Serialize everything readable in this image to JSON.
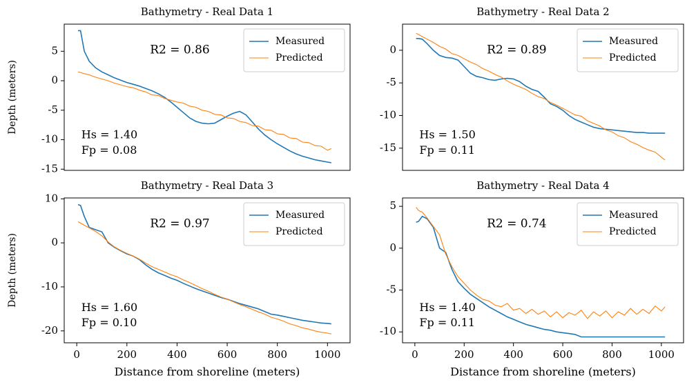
{
  "chart_data": [
    {
      "type": "line",
      "title": "Bathymetry - Real Data 1",
      "ylabel": "Depth (meters)",
      "x": [
        5,
        15,
        30,
        50,
        75,
        100,
        125,
        150,
        175,
        200,
        225,
        250,
        275,
        300,
        325,
        350,
        375,
        400,
        425,
        450,
        475,
        500,
        525,
        550,
        575,
        600,
        625,
        650,
        675,
        700,
        725,
        750,
        775,
        800,
        825,
        850,
        875,
        900,
        925,
        950,
        975,
        1000,
        1015
      ],
      "series": [
        {
          "name": "Measured",
          "color": "#1f77b4",
          "values": [
            8.5,
            8.5,
            5,
            3.3,
            2.2,
            1.5,
            1.0,
            0.5,
            0.1,
            -0.3,
            -0.6,
            -0.9,
            -1.3,
            -1.7,
            -2.2,
            -2.8,
            -3.6,
            -4.5,
            -5.4,
            -6.3,
            -6.9,
            -7.2,
            -7.3,
            -7.2,
            -6.6,
            -6.0,
            -5.5,
            -5.2,
            -5.8,
            -7.0,
            -8.2,
            -9.2,
            -10.0,
            -10.7,
            -11.3,
            -11.9,
            -12.4,
            -12.8,
            -13.1,
            -13.4,
            -13.6,
            -13.8,
            -13.9
          ]
        },
        {
          "name": "Predicted",
          "color": "#ff7f0e",
          "values": [
            1.5,
            1.4,
            1.2,
            1.0,
            0.6,
            0.3,
            0.0,
            -0.4,
            -0.7,
            -1.0,
            -1.2,
            -1.6,
            -1.9,
            -2.4,
            -2.5,
            -3.0,
            -3.3,
            -3.6,
            -3.8,
            -4.3,
            -4.5,
            -5.0,
            -5.2,
            -5.7,
            -5.8,
            -6.3,
            -6.4,
            -6.9,
            -7.1,
            -7.6,
            -7.7,
            -8.3,
            -8.4,
            -9.0,
            -9.1,
            -9.7,
            -9.8,
            -10.4,
            -10.5,
            -11.0,
            -11.1,
            -11.8,
            -11.5
          ]
        }
      ],
      "xlim": [
        -50,
        1090
      ],
      "ylim": [
        -15.2,
        9.6
      ],
      "yticks": [
        -15,
        -10,
        -5,
        0,
        5
      ],
      "legend": "upper right",
      "annotations": [
        "R2 = 0.86",
        "Hs = 1.40",
        "Fp = 0.08"
      ]
    },
    {
      "type": "line",
      "title": "Bathymetry - Real Data 2",
      "x": [
        5,
        15,
        30,
        50,
        75,
        100,
        125,
        150,
        175,
        200,
        225,
        250,
        275,
        300,
        325,
        350,
        375,
        400,
        425,
        450,
        475,
        500,
        525,
        550,
        575,
        600,
        625,
        650,
        675,
        700,
        725,
        750,
        775,
        800,
        825,
        850,
        875,
        900,
        925,
        950,
        975,
        1000,
        1015
      ],
      "series": [
        {
          "name": "Measured",
          "color": "#1f77b4",
          "values": [
            1.8,
            1.8,
            1.7,
            1.0,
            0.0,
            -0.8,
            -1.1,
            -1.2,
            -1.5,
            -2.5,
            -3.5,
            -4.0,
            -4.2,
            -4.5,
            -4.6,
            -4.4,
            -4.3,
            -4.4,
            -4.8,
            -5.5,
            -6.0,
            -6.3,
            -7.2,
            -8.2,
            -8.6,
            -9.2,
            -10.0,
            -10.6,
            -11.0,
            -11.4,
            -11.8,
            -12.0,
            -12.1,
            -12.2,
            -12.3,
            -12.4,
            -12.5,
            -12.6,
            -12.6,
            -12.7,
            -12.7,
            -12.7,
            -12.7
          ]
        },
        {
          "name": "Predicted",
          "color": "#ff7f0e",
          "values": [
            2.6,
            2.4,
            2.1,
            1.7,
            1.2,
            0.6,
            0.2,
            -0.5,
            -0.8,
            -1.3,
            -1.8,
            -2.2,
            -2.8,
            -3.2,
            -3.7,
            -4.1,
            -4.7,
            -5.2,
            -5.6,
            -6.0,
            -6.6,
            -7.1,
            -7.4,
            -8.0,
            -8.4,
            -8.9,
            -9.4,
            -9.9,
            -10.1,
            -10.8,
            -11.2,
            -11.6,
            -12.2,
            -12.5,
            -13.1,
            -13.4,
            -14.0,
            -14.4,
            -14.9,
            -15.3,
            -15.6,
            -16.4,
            -16.8
          ]
        }
      ],
      "xlim": [
        -50,
        1090
      ],
      "ylim": [
        -18.4,
        4
      ],
      "yticks": [
        -15,
        -10,
        -5,
        0
      ],
      "legend": "upper right",
      "annotations": [
        "R2 = 0.89",
        "Hs = 1.50",
        "Fp = 0.11"
      ]
    },
    {
      "type": "line",
      "title": "Bathymetry - Real Data 3",
      "ylabel": "Depth (meters)",
      "xlabel": "Distance from shoreline (meters)",
      "x": [
        5,
        15,
        30,
        50,
        75,
        100,
        125,
        150,
        175,
        200,
        225,
        250,
        275,
        300,
        325,
        350,
        375,
        400,
        425,
        450,
        475,
        500,
        525,
        550,
        575,
        600,
        625,
        650,
        675,
        700,
        725,
        750,
        775,
        800,
        825,
        850,
        875,
        900,
        925,
        950,
        975,
        1000,
        1015
      ],
      "series": [
        {
          "name": "Measured",
          "color": "#1f77b4",
          "values": [
            8.7,
            8.5,
            6,
            3.5,
            3,
            2.5,
            0,
            -1,
            -1.8,
            -2.5,
            -3,
            -3.8,
            -5,
            -6,
            -6.8,
            -7.4,
            -8,
            -8.5,
            -9.2,
            -9.8,
            -10.4,
            -10.9,
            -11.4,
            -11.9,
            -12.4,
            -12.8,
            -13.3,
            -13.8,
            -14.2,
            -14.6,
            -15,
            -15.6,
            -16.2,
            -16.4,
            -16.7,
            -17,
            -17.3,
            -17.6,
            -17.8,
            -18,
            -18.2,
            -18.3,
            -18.4
          ]
        },
        {
          "name": "Predicted",
          "color": "#ff7f0e",
          "values": [
            4.8,
            4.5,
            4,
            3.4,
            2.6,
            1.6,
            0.2,
            -0.9,
            -1.7,
            -2.4,
            -3.0,
            -3.7,
            -4.6,
            -5.4,
            -6.0,
            -6.6,
            -7.2,
            -7.7,
            -8.4,
            -9.0,
            -9.7,
            -10.4,
            -11.0,
            -11.7,
            -12.3,
            -12.8,
            -13.4,
            -14.0,
            -14.5,
            -15.1,
            -15.7,
            -16.2,
            -16.9,
            -17.3,
            -17.8,
            -18.4,
            -18.8,
            -19.3,
            -19.6,
            -20.0,
            -20.3,
            -20.5,
            -20.7
          ]
        }
      ],
      "xlim": [
        -50,
        1090
      ],
      "ylim": [
        -22.7,
        10.2
      ],
      "xticks": [
        0,
        200,
        400,
        600,
        800,
        1000
      ],
      "yticks": [
        -20,
        -10,
        0,
        10
      ],
      "legend": "upper right",
      "annotations": [
        "R2 = 0.97",
        "Hs = 1.60",
        "Fp = 0.10"
      ]
    },
    {
      "type": "line",
      "title": "Bathymetry - Real Data 4",
      "xlabel": "Distance from shoreline (meters)",
      "x": [
        5,
        15,
        30,
        50,
        75,
        100,
        125,
        150,
        175,
        200,
        225,
        250,
        275,
        300,
        325,
        350,
        375,
        400,
        425,
        450,
        475,
        500,
        525,
        550,
        575,
        600,
        625,
        650,
        675,
        700,
        725,
        750,
        775,
        800,
        825,
        850,
        875,
        900,
        925,
        950,
        975,
        1000,
        1015
      ],
      "series": [
        {
          "name": "Measured",
          "color": "#1f77b4",
          "values": [
            3.1,
            3.2,
            3.8,
            3.5,
            2.5,
            0.0,
            -0.5,
            -2.5,
            -4.0,
            -4.8,
            -5.5,
            -6.0,
            -6.5,
            -7.0,
            -7.4,
            -7.8,
            -8.2,
            -8.5,
            -8.8,
            -9.1,
            -9.3,
            -9.5,
            -9.7,
            -9.8,
            -10.0,
            -10.1,
            -10.2,
            -10.3,
            -10.6,
            -10.6,
            -10.6,
            -10.6,
            -10.6,
            -10.6,
            -10.6,
            -10.6,
            -10.6,
            -10.6,
            -10.6,
            -10.6,
            -10.6,
            -10.6,
            -10.6
          ]
        },
        {
          "name": "Predicted",
          "color": "#ff7f0e",
          "values": [
            4.9,
            4.5,
            4.3,
            3.6,
            2.6,
            1.6,
            -0.7,
            -2.2,
            -3.4,
            -4.2,
            -5.0,
            -5.6,
            -6.1,
            -6.3,
            -6.8,
            -7.0,
            -6.6,
            -7.4,
            -7.2,
            -7.8,
            -7.3,
            -7.9,
            -7.5,
            -8.2,
            -7.6,
            -8.3,
            -7.7,
            -8.0,
            -7.4,
            -8.4,
            -7.6,
            -8.1,
            -7.5,
            -8.3,
            -7.6,
            -8.0,
            -7.2,
            -7.9,
            -7.3,
            -7.8,
            -6.9,
            -7.5,
            -7.0
          ]
        }
      ],
      "xlim": [
        -50,
        1090
      ],
      "ylim": [
        -11.3,
        6
      ],
      "xticks": [
        0,
        200,
        400,
        600,
        800,
        1000
      ],
      "yticks": [
        -10,
        -5,
        0,
        5
      ],
      "legend": "upper right",
      "annotations": [
        "R2 = 0.74",
        "Hs = 1.40",
        "Fp = 0.11"
      ]
    }
  ]
}
